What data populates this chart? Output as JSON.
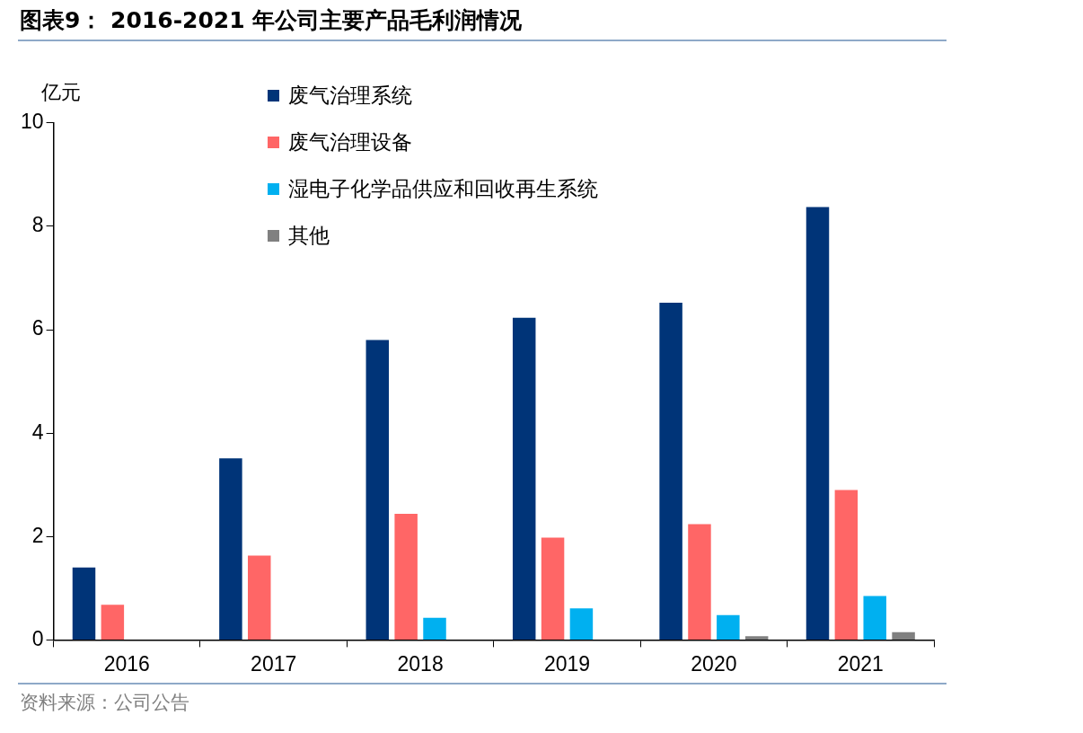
{
  "chart_data": {
    "type": "bar",
    "title": "图表9： 2016-2021 年公司主要产品毛利润情况",
    "ylabel": "亿元",
    "categories": [
      "2016",
      "2017",
      "2018",
      "2019",
      "2020",
      "2021"
    ],
    "series": [
      {
        "name": "废气治理系统",
        "color": "#003478",
        "values": [
          1.4,
          3.51,
          5.8,
          6.23,
          6.52,
          8.37
        ]
      },
      {
        "name": "废气治理设备",
        "color": "#ff6666",
        "values": [
          0.68,
          1.63,
          2.44,
          1.98,
          2.24,
          2.9
        ]
      },
      {
        "name": "湿电子化学品供应和回收再生系统",
        "color": "#00b0f0",
        "values": [
          null,
          null,
          0.43,
          0.61,
          0.48,
          0.85
        ]
      },
      {
        "name": "其他",
        "color": "#808080",
        "values": [
          null,
          null,
          null,
          null,
          0.07,
          0.15
        ]
      }
    ],
    "ylim": [
      0,
      10
    ],
    "yticks": [
      0,
      2,
      4,
      6,
      8,
      10
    ],
    "grid": false,
    "legend": "top left",
    "annotations": [
      "资料来源：公司公告"
    ]
  }
}
